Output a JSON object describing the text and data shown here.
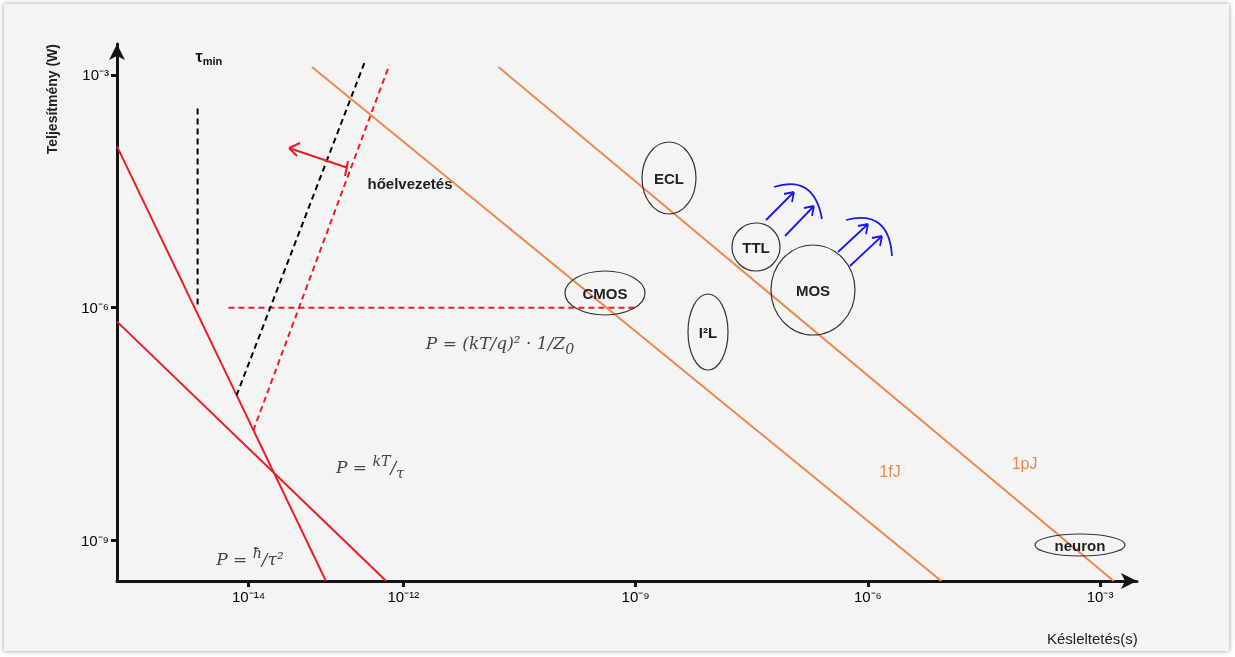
{
  "chart_data": {
    "type": "line",
    "xlabel": "Késleltetés(s)",
    "ylabel": "Teljesítmény (W)",
    "log": "xy",
    "grid": false,
    "marker": "none",
    "xlim": [
      2e-16,
      0.003
    ],
    "ylim": [
      3e-10,
      0.0025
    ],
    "xticks": [
      {
        "value": 1e-14,
        "label": "10⁻¹⁴"
      },
      {
        "value": 1e-12,
        "label": "10⁻¹²"
      },
      {
        "value": 1e-09,
        "label": "10⁻⁹"
      },
      {
        "value": 1e-06,
        "label": "10⁻⁶"
      },
      {
        "value": 0.001,
        "label": "10⁻³"
      }
    ],
    "yticks": [
      {
        "value": 1e-09,
        "label": "10⁻⁹"
      },
      {
        "value": 1e-06,
        "label": "10⁻⁶"
      },
      {
        "value": 0.001,
        "label": "10⁻³"
      }
    ],
    "series": [
      {
        "color": "#ee1c25",
        "line_style": "solid",
        "x": [
          2e-16,
          1e-13
        ],
        "values": [
          0.00012,
          3e-10
        ]
      },
      {
        "color": "#ee1c25",
        "line_style": "solid",
        "x": [
          2e-16,
          6e-13
        ],
        "values": [
          6.6e-07,
          3e-10
        ]
      },
      {
        "color": "#ee1c25",
        "line_style": "dashed",
        "x": [
          5.5e-15,
          1e-09
        ],
        "values": [
          1e-06,
          1e-06
        ]
      },
      {
        "color": "#000000",
        "line_style": "dashed",
        "x": [
          7e-15,
          3.2e-13
        ],
        "values": [
          7.4e-08,
          0.0015
        ]
      },
      {
        "color": "#ee1c25",
        "line_style": "dashed",
        "x": [
          1.15e-14,
          6.6e-13
        ],
        "values": [
          2.6e-08,
          0.00135
        ]
      },
      {
        "name": "τ$_{min}$",
        "color": "#000000",
        "line_style": "dashed",
        "x": [
          2.2e-15,
          2.2e-15
        ],
        "values": [
          1.1e-06,
          0.00041
        ]
      },
      {
        "name": "1fJ",
        "color": "#f0884a",
        "line_style": "solid",
        "x": [
          6.6e-14,
          8.9e-06
        ],
        "values": [
          0.00126,
          3e-10
        ]
      },
      {
        "name": "1pJ",
        "color": "#f0884a",
        "line_style": "solid",
        "x": [
          1.7e-11,
          0.0015
        ],
        "values": [
          0.00126,
          3e-10
        ]
      }
    ],
    "annotations": [
      "hőelvezetés",
      "P = (kT/q)² · 1/Z$_{0}$",
      "P = $^{kT}$/$_{τ}$",
      "P = $^{ħ}$/τ²",
      "ECL",
      "CMOS",
      "TTL",
      "I²L",
      "MOS",
      "neuron"
    ]
  }
}
